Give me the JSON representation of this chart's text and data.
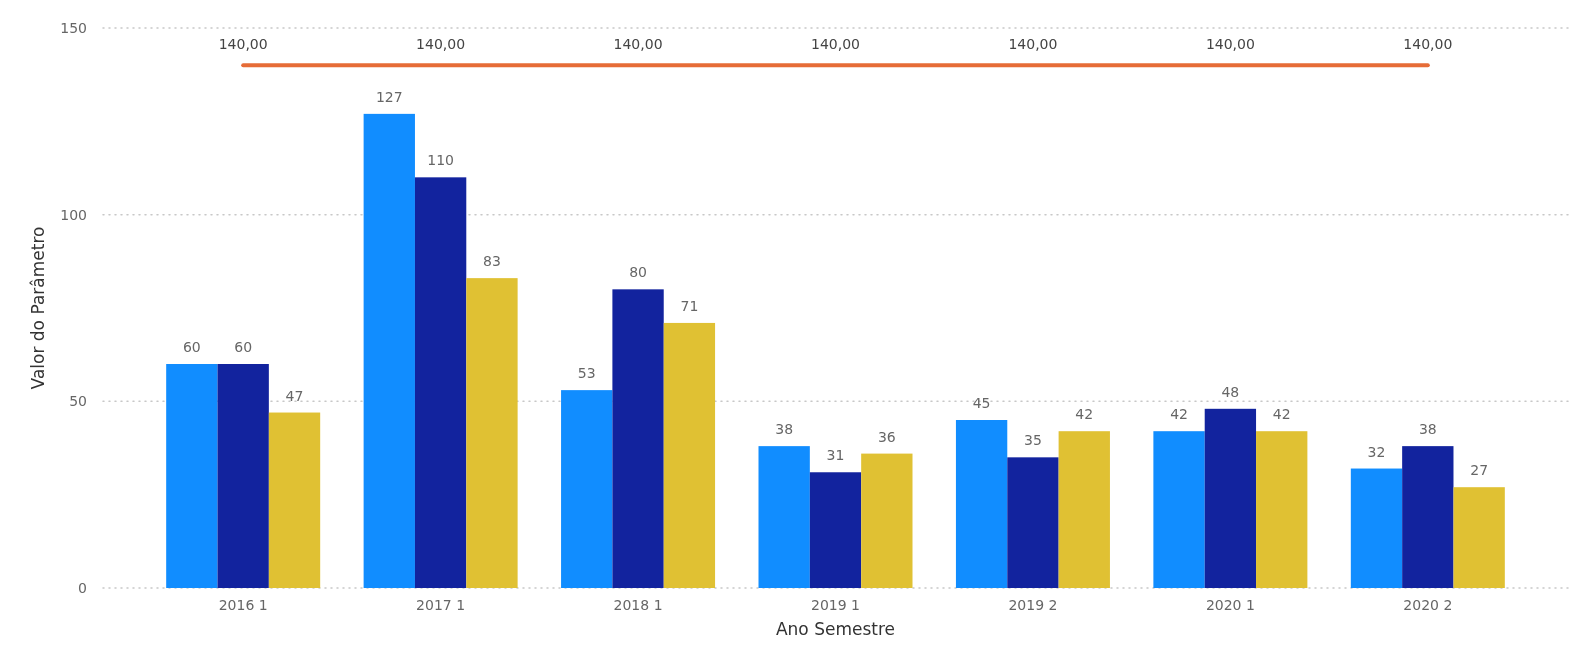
{
  "chart_data": {
    "type": "bar",
    "xlabel": "Ano Semestre",
    "ylabel": "Valor do Parâmetro",
    "categories": [
      "2016 1",
      "2017 1",
      "2018 1",
      "2019 1",
      "2019 2",
      "2020 1",
      "2020 2"
    ],
    "series": [
      {
        "color": "#118dff",
        "values": [
          60,
          127,
          53,
          38,
          45,
          42,
          32
        ]
      },
      {
        "color": "#12239e",
        "values": [
          60,
          110,
          80,
          31,
          35,
          48,
          38
        ]
      },
      {
        "color": "#e0c133",
        "values": [
          47,
          83,
          71,
          36,
          42,
          42,
          27
        ]
      },
      {
        "type": "line",
        "color": "#e66c37",
        "values": [
          140,
          140,
          140,
          140,
          140,
          140,
          140
        ],
        "value_labels": [
          "140,00",
          "140,00",
          "140,00",
          "140,00",
          "140,00",
          "140,00",
          "140,00"
        ]
      }
    ],
    "ylim": [
      0,
      150
    ],
    "yticks": [
      0,
      50,
      100,
      150
    ],
    "grid": "y",
    "data_labels": true,
    "marker": "none"
  }
}
